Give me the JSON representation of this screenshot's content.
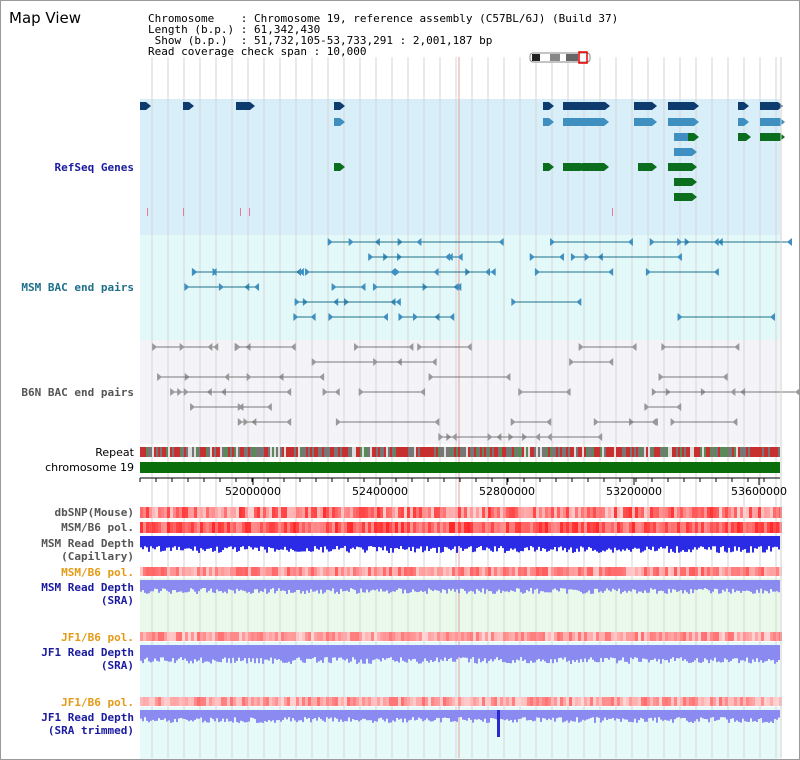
{
  "title": "Map View",
  "info": {
    "line1": "Chromosome    : Chromosome 19, reference assembly (C57BL/6J) (Build 37)",
    "line2": "Length (b.p.) : 61,342,430",
    "line3": " Show (b.p.)  : 51,732,105-53,733,291 : 2,001,187 bp",
    "line4": "Read coverage check span : 10,000"
  },
  "labels": {
    "refseq": "RefSeq Genes",
    "msm_bac": "MSM BAC end pairs",
    "b6n_bac": "B6N BAC end pairs",
    "repeat": "Repeat",
    "chromosome": "chromosome 19",
    "dbsnp": "dbSNP(Mouse)",
    "msm_b6_pol_1": "MSM/B6 pol.",
    "msm_read_depth_cap_1": "MSM Read Depth",
    "msm_read_depth_cap_2": "(Capillary)",
    "msm_b6_pol_2": "MSM/B6 pol.",
    "msm_read_depth_sra_1": "MSM Read Depth",
    "msm_read_depth_sra_2": "(SRA)",
    "jf1_b6_pol_1": "JF1/B6 pol.",
    "jf1_read_depth_sra_1": "JF1 Read Depth",
    "jf1_read_depth_sra_2": "(SRA)",
    "jf1_b6_pol_2": "JF1/B6 pol.",
    "jf1_read_depth_trim_1": "JF1 Read Depth",
    "jf1_read_depth_trim_2": "(SRA trimmed)"
  },
  "axis": {
    "ticks": [
      "52000000",
      "52400000",
      "52800000",
      "53200000",
      "53600000"
    ]
  },
  "colors": {
    "refseq_bg": "#d8effa",
    "msm_bg": "#e3f8f8",
    "b6n_bg": "#f4f4f8",
    "gene_dark": "#0d3b6e",
    "gene_light": "#3f8fc0",
    "gene_green": "#0b6e1e",
    "chromosome": "#0a6e0a",
    "read_depth": "#2b2be6",
    "read_depth_light": "#8a8af0"
  }
}
